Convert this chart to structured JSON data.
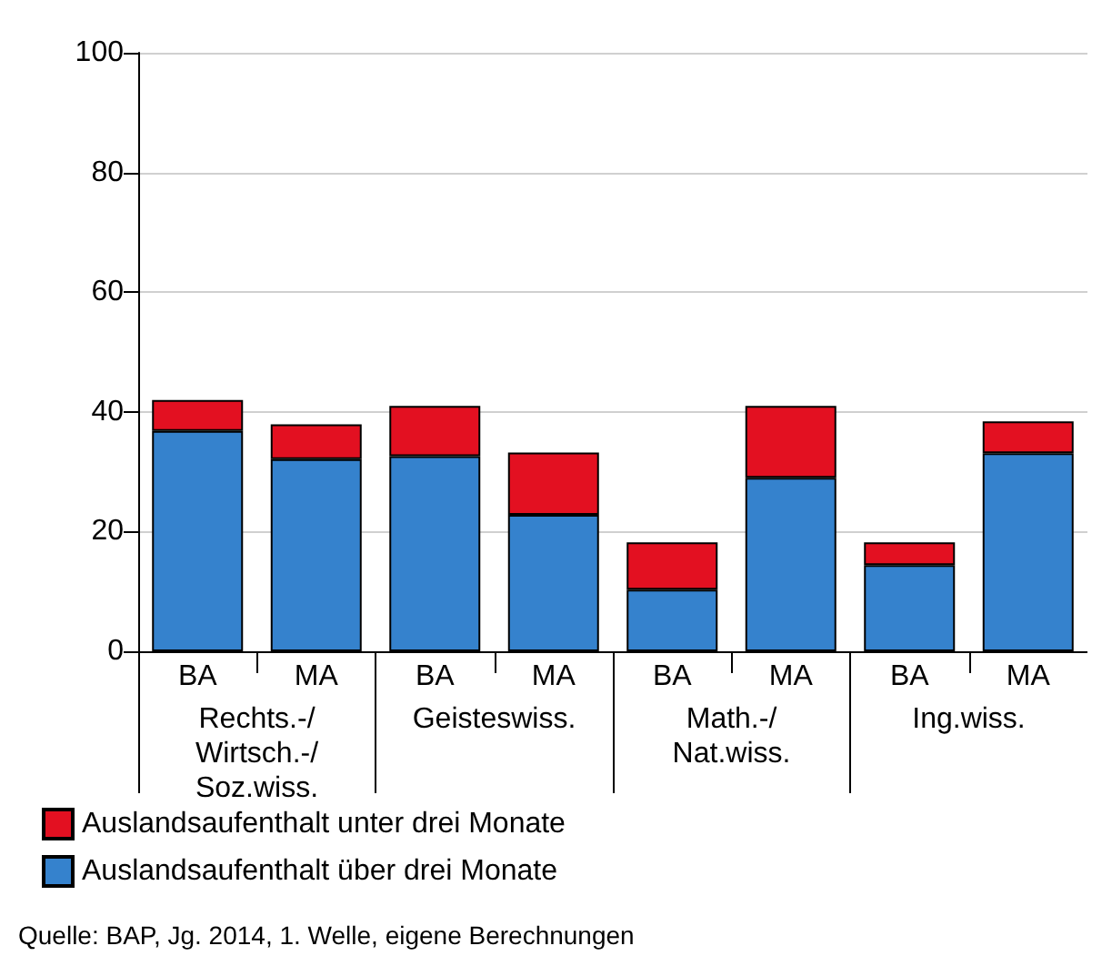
{
  "chart_data": {
    "type": "bar",
    "stacked": true,
    "categories": [
      "BA",
      "MA",
      "BA",
      "MA",
      "BA",
      "MA",
      "BA",
      "MA"
    ],
    "series": [
      {
        "name": "Auslandsaufenthalt über drei Monate",
        "color": "#3582cd",
        "values": [
          36.8,
          32.1,
          32.6,
          22.8,
          10.3,
          29.0,
          14.4,
          33.1
        ]
      },
      {
        "name": "Auslandsaufenthalt unter drei Monate",
        "color": "#e31021",
        "values": [
          5.2,
          5.8,
          8.4,
          10.4,
          7.9,
          12.0,
          3.8,
          5.3
        ]
      }
    ],
    "ylim": [
      0,
      100
    ],
    "yticks": [
      0,
      20,
      40,
      60,
      80,
      100
    ],
    "grid": "y",
    "legend": "bottom left",
    "annotations": [
      "Rechts.-/\nWirtsch.-/\nSoz.wiss.",
      "Geisteswiss.",
      "Math.-/\nNat.wiss.",
      "Ing.wiss.",
      "Quelle: BAP, Jg. 2014, 1. Welle, eigene Berechnungen"
    ]
  }
}
